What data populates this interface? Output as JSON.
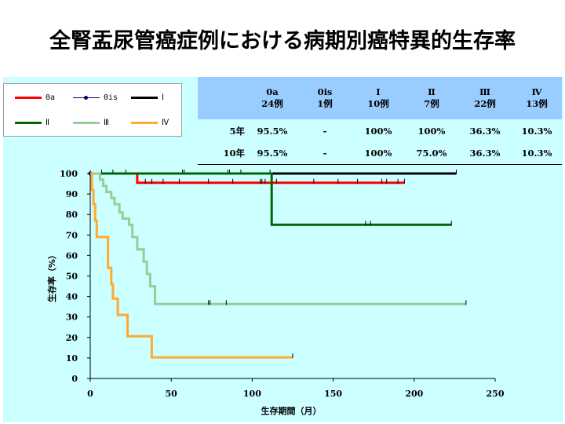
{
  "title": "全腎盂尿管癌症例における病期別癌特異的生存率",
  "legend": [
    {
      "label": "0a",
      "color": "#ff0000",
      "marker": false
    },
    {
      "label": "0is",
      "color": "#000066",
      "marker": true
    },
    {
      "label": "Ⅰ",
      "color": "#000000",
      "marker": false
    },
    {
      "label": "Ⅱ",
      "color": "#006600",
      "marker": false
    },
    {
      "label": "Ⅲ",
      "color": "#99cc99",
      "marker": false
    },
    {
      "label": "Ⅳ",
      "color": "#ffaa33",
      "marker": false
    }
  ],
  "table": {
    "header": [
      "",
      "0a\n24例",
      "0is\n1例",
      "Ⅰ\n10例",
      "Ⅱ\n7例",
      "Ⅲ\n22例",
      "Ⅳ\n13例"
    ],
    "rows": [
      [
        "5年",
        "95.5%",
        "-",
        "100%",
        "100%",
        "36.3%",
        "10.3%"
      ],
      [
        "10年",
        "95.5%",
        "-",
        "100%",
        "75.0%",
        "36.3%",
        "10.3%"
      ]
    ]
  },
  "chart_data": {
    "type": "line",
    "xlabel": "生存期間（月）",
    "ylabel": "生存率（%）",
    "xlim": [
      0,
      250
    ],
    "ylim": [
      0,
      100
    ],
    "xticks": [
      0,
      50,
      100,
      150,
      200,
      250
    ],
    "yticks": [
      0,
      10,
      20,
      30,
      40,
      50,
      60,
      70,
      80,
      90,
      100
    ],
    "series": [
      {
        "name": "0a",
        "color": "#ff0000",
        "x": [
          0,
          29,
          29,
          194
        ],
        "y": [
          100,
          100,
          95.5,
          95.5
        ],
        "censor_x": [
          34,
          38,
          45,
          55,
          73,
          88,
          105,
          106,
          108,
          115,
          138,
          153,
          165,
          180,
          183,
          190,
          194
        ]
      },
      {
        "name": "0is",
        "color": "#000066",
        "x": [
          0,
          1
        ],
        "y": [
          100,
          100
        ],
        "censor_x": []
      },
      {
        "name": "Ⅰ",
        "color": "#000000",
        "x": [
          0,
          226
        ],
        "y": [
          100,
          100
        ],
        "censor_x": [
          7,
          14,
          22,
          57,
          58,
          85,
          86,
          93,
          111,
          226
        ]
      },
      {
        "name": "Ⅱ",
        "color": "#006600",
        "x": [
          0,
          112,
          112,
          223
        ],
        "y": [
          100,
          100,
          75,
          75
        ],
        "censor_x": [
          170,
          173,
          223
        ]
      },
      {
        "name": "Ⅲ",
        "color": "#99cc99",
        "x": [
          0,
          6,
          6,
          8,
          8,
          10,
          10,
          13,
          13,
          15,
          15,
          18,
          18,
          20,
          20,
          24,
          24,
          26,
          26,
          29,
          29,
          33,
          33,
          35,
          35,
          37,
          37,
          40,
          40,
          232
        ],
        "y": [
          100,
          100,
          97,
          97,
          94,
          94,
          91,
          91,
          88,
          88,
          85,
          85,
          81,
          81,
          78,
          78,
          75,
          75,
          69,
          69,
          63,
          63,
          57,
          57,
          51,
          51,
          45,
          45,
          36.3,
          36.3
        ],
        "censor_x": [
          73,
          74,
          84,
          232
        ]
      },
      {
        "name": "Ⅳ",
        "color": "#ffaa33",
        "x": [
          0,
          1,
          1,
          2,
          2,
          3,
          3,
          4,
          4,
          11,
          11,
          13,
          13,
          14,
          14,
          17,
          17,
          23,
          23,
          38,
          38,
          125
        ],
        "y": [
          100,
          100,
          92,
          92,
          85,
          85,
          77,
          77,
          69,
          69,
          54,
          54,
          46,
          46,
          39,
          39,
          31,
          31,
          20.6,
          20.6,
          10.3,
          10.3
        ],
        "censor_x": [
          125
        ]
      }
    ]
  }
}
